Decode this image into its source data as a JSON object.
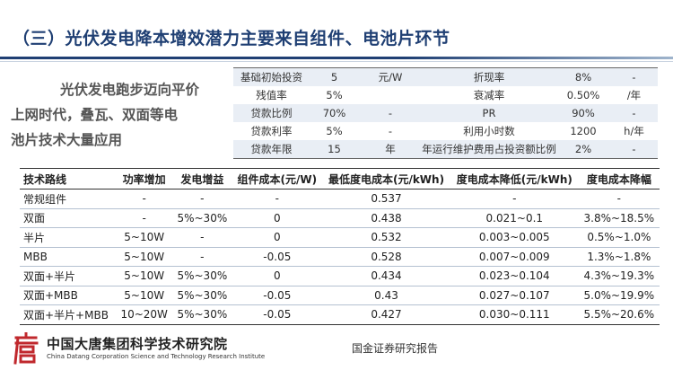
{
  "header": {
    "title": "（三）光伏发电降本增效潜力主要来自组件、电池片环节"
  },
  "lead": {
    "line1": "光伏发电跑步迈向平价",
    "line2": "上网时代，叠瓦、双面等电",
    "line3": "池片技术大量应用"
  },
  "params_table": [
    [
      "基础初始投资",
      "5",
      "元/W",
      "折现率",
      "8%",
      "-"
    ],
    [
      "残值率",
      "5%",
      "",
      "衰减率",
      "0.50%",
      "/年"
    ],
    [
      "贷款比例",
      "70%",
      "-",
      "PR",
      "90%",
      "-"
    ],
    [
      "贷款利率",
      "5%",
      "-",
      "利用小时数",
      "1200",
      "h/年"
    ],
    [
      "贷款年限",
      "15",
      "年",
      "年运行维护费用占投资额比例",
      "2%",
      "-"
    ]
  ],
  "tech_table": {
    "headers": [
      "技术路线",
      "功率增加",
      "发电增益",
      "组件成本(元/W)",
      "最低度电成本(元/kWh)",
      "度电成本降低(元/kWh)",
      "度电成本降幅"
    ],
    "rows": [
      [
        "常规组件",
        "-",
        "-",
        "-",
        "0.537",
        "-",
        "-"
      ],
      [
        "双面",
        "-",
        "5%~30%",
        "0",
        "0.438",
        "0.021~0.1",
        "3.8%~18.5%"
      ],
      [
        "半片",
        "5~10W",
        "-",
        "0",
        "0.532",
        "0.003~0.005",
        "0.5%~1.0%"
      ],
      [
        "MBB",
        "5~10W",
        "-",
        "-0.05",
        "0.528",
        "0.007~0.009",
        "1.3%~1.8%"
      ],
      [
        "双面+半片",
        "5~10W",
        "5%~30%",
        "0",
        "0.434",
        "0.023~0.104",
        "4.3%~19.3%"
      ],
      [
        "双面+MBB",
        "5~10W",
        "5%~30%",
        "-0.05",
        "0.43",
        "0.027~0.107",
        "5.0%~19.9%"
      ],
      [
        "双面+半片+MBB",
        "10~20W",
        "5%~30%",
        "-0.05",
        "0.427",
        "0.030~0.111",
        "5.5%~20.6%"
      ]
    ]
  },
  "footer": {
    "org_cn": "中国大唐集团科学技术研究院",
    "org_en": "China Datang Corporation Science and Technology Research Institute",
    "source": "国金证券研究报告",
    "logo_char": "唐",
    "logo_color": "#c0282d"
  },
  "colors": {
    "title": "#1f3f73",
    "row_band": "#e9eef5"
  }
}
